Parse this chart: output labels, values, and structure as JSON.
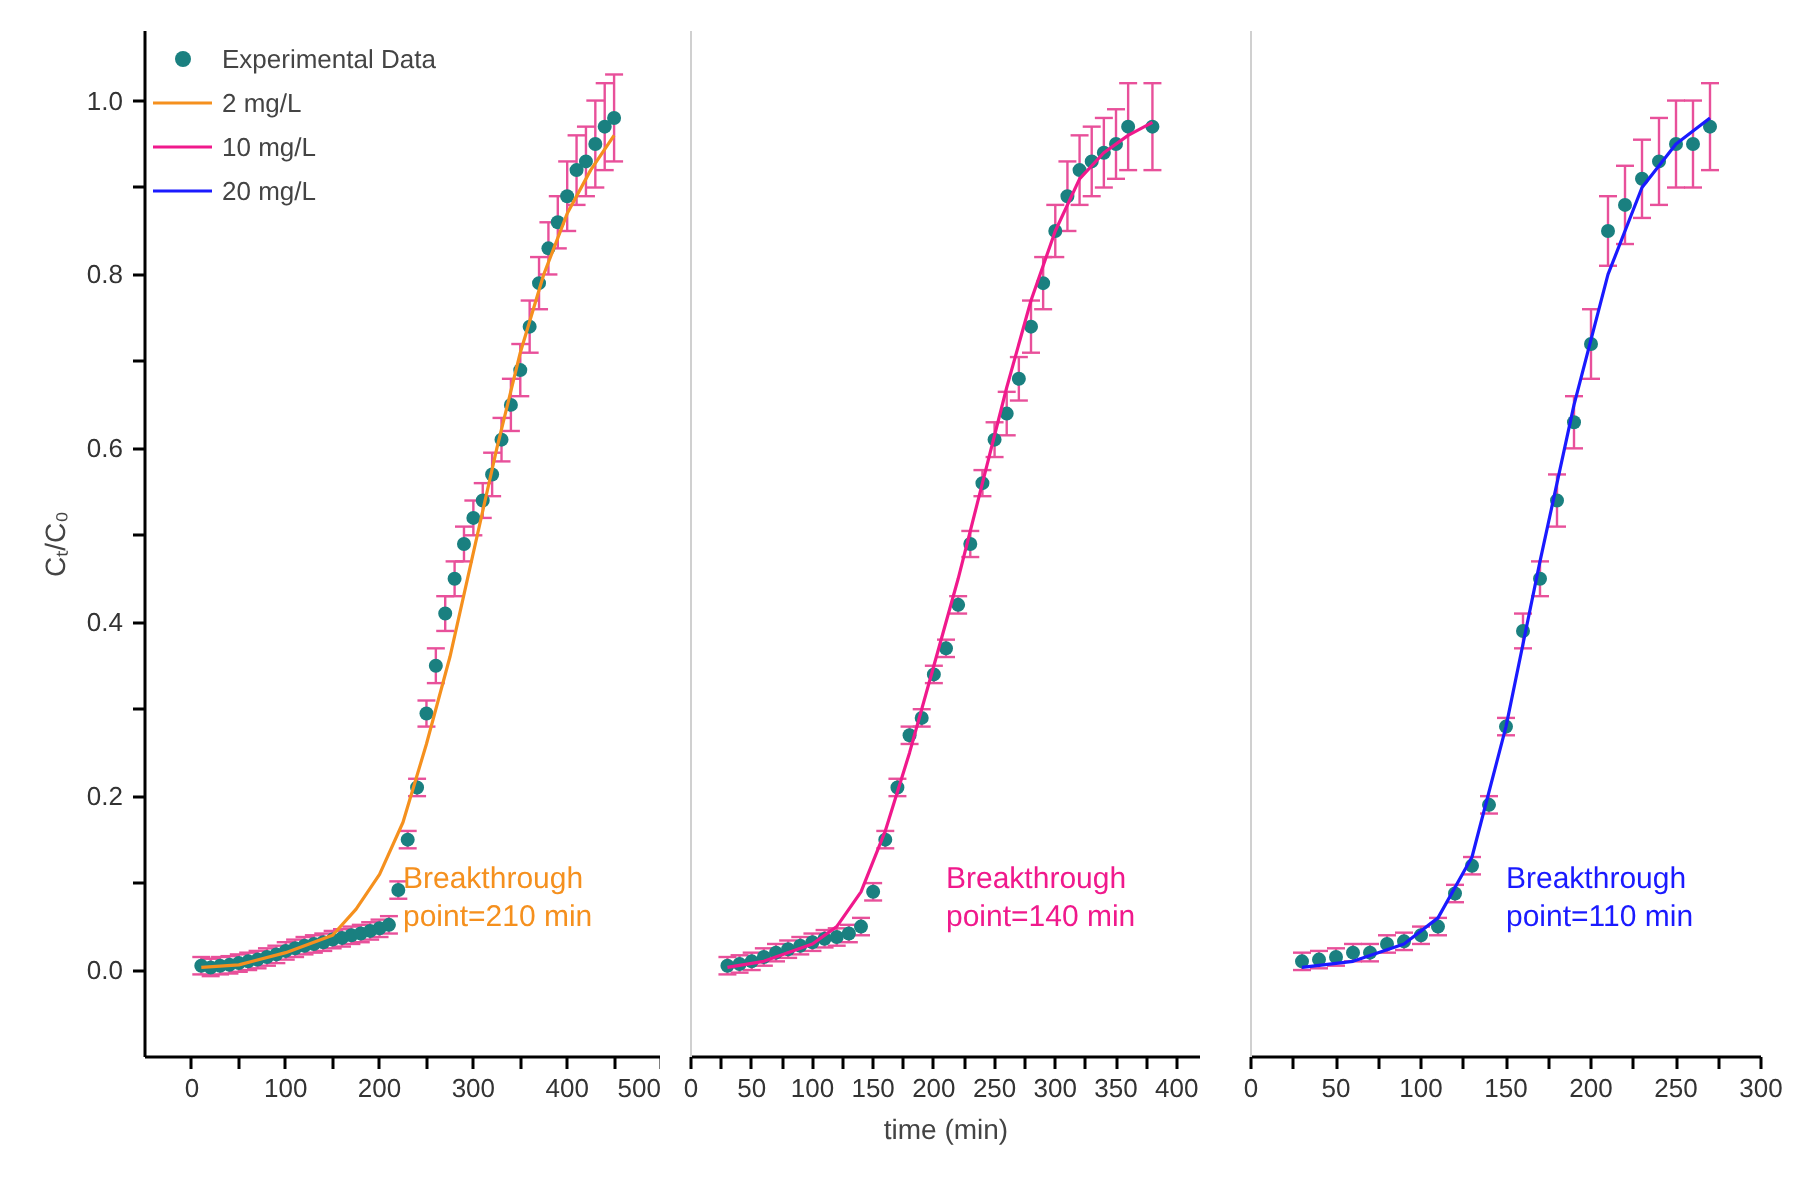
{
  "chart_data": [
    {
      "type": "scatter",
      "ylabel": "Cₜ/C₀",
      "xlim": [
        -50,
        500
      ],
      "ylim": [
        -0.1,
        1.08
      ],
      "grid": false,
      "legend": "top left",
      "xticks": [
        0,
        {
          "value": 50,
          "label": null
        },
        100,
        {
          "value": 150,
          "label": null
        },
        200,
        {
          "value": 250,
          "label": null
        },
        300,
        {
          "value": 350,
          "label": null
        },
        400,
        {
          "value": 450,
          "label": null
        },
        500
      ],
      "yticks": [
        {
          "value": 0,
          "label": "0.0"
        },
        {
          "value": 0.1,
          "label": null
        },
        {
          "value": 0.2,
          "label": "0.2"
        },
        {
          "value": 0.3,
          "label": null
        },
        {
          "value": 0.4,
          "label": "0.4"
        },
        {
          "value": 0.5,
          "label": null
        },
        {
          "value": 0.6,
          "label": "0.6"
        },
        {
          "value": 0.7,
          "label": null
        },
        {
          "value": 0.8,
          "label": "0.8"
        },
        {
          "value": 0.9,
          "label": null
        },
        {
          "value": 1.0,
          "label": "1.0"
        }
      ],
      "annotations": [
        "Breakthrough\npoint=210 min"
      ],
      "series": [
        {
          "name": "Experimental Data",
          "marker": "circle",
          "color": "#1a8080",
          "x": [
            10,
            20,
            30,
            40,
            50,
            60,
            70,
            80,
            90,
            100,
            110,
            120,
            130,
            140,
            150,
            160,
            170,
            180,
            190,
            200,
            210,
            220,
            230,
            240,
            250,
            260,
            270,
            280,
            290,
            300,
            310,
            320,
            330,
            340,
            350,
            360,
            370,
            380,
            390,
            400,
            410,
            420,
            430,
            440,
            450
          ],
          "values": [
            0.005,
            0.003,
            0.005,
            0.006,
            0.008,
            0.01,
            0.012,
            0.015,
            0.018,
            0.022,
            0.025,
            0.028,
            0.03,
            0.032,
            0.035,
            0.037,
            0.04,
            0.042,
            0.045,
            0.048,
            0.052,
            0.092,
            0.15,
            0.21,
            0.295,
            0.35,
            0.41,
            0.45,
            0.49,
            0.52,
            0.54,
            0.57,
            0.61,
            0.65,
            0.69,
            0.74,
            0.79,
            0.83,
            0.86,
            0.89,
            0.92,
            0.93,
            0.95,
            0.97,
            0.98
          ],
          "errors": [
            0.01,
            0.01,
            0.01,
            0.01,
            0.01,
            0.01,
            0.01,
            0.01,
            0.01,
            0.01,
            0.01,
            0.01,
            0.01,
            0.01,
            0.01,
            0.01,
            0.01,
            0.01,
            0.01,
            0.01,
            0.01,
            0.01,
            0.01,
            0.01,
            0.015,
            0.02,
            0.02,
            0.02,
            0.02,
            0.02,
            0.02,
            0.025,
            0.025,
            0.03,
            0.03,
            0.03,
            0.03,
            0.03,
            0.03,
            0.04,
            0.04,
            0.04,
            0.05,
            0.05,
            0.05
          ]
        },
        {
          "type": "line",
          "name": "2 mg/L",
          "color": "#f5901e",
          "x": [
            10,
            50,
            100,
            150,
            175,
            200,
            225,
            250,
            275,
            300,
            325,
            350,
            375,
            400,
            425,
            450
          ],
          "values": [
            0.003,
            0.006,
            0.02,
            0.04,
            0.07,
            0.11,
            0.17,
            0.26,
            0.36,
            0.48,
            0.6,
            0.71,
            0.8,
            0.87,
            0.92,
            0.96
          ]
        }
      ]
    },
    {
      "type": "scatter",
      "xlabel": "time (min)",
      "xlim": [
        0,
        420
      ],
      "ylim": [
        -0.1,
        1.08
      ],
      "grid": false,
      "tick_labels": "x",
      "xticks": [
        0,
        {
          "value": 25,
          "label": null
        },
        50,
        {
          "value": 75,
          "label": null
        },
        100,
        {
          "value": 125,
          "label": null
        },
        150,
        {
          "value": 175,
          "label": null
        },
        200,
        {
          "value": 225,
          "label": null
        },
        250,
        {
          "value": 275,
          "label": null
        },
        300,
        {
          "value": 325,
          "label": null
        },
        350,
        {
          "value": 375,
          "label": null
        },
        400
      ],
      "annotations": [
        "Breakthrough\npoint=140 min"
      ],
      "series": [
        {
          "marker": "circle",
          "color": "#1a8080",
          "x": [
            30,
            40,
            50,
            60,
            70,
            80,
            90,
            100,
            110,
            120,
            130,
            140,
            150,
            160,
            170,
            180,
            190,
            200,
            210,
            220,
            230,
            240,
            250,
            260,
            270,
            280,
            290,
            300,
            310,
            320,
            330,
            340,
            350,
            360,
            380
          ],
          "values": [
            0.005,
            0.007,
            0.01,
            0.015,
            0.02,
            0.024,
            0.028,
            0.032,
            0.036,
            0.038,
            0.042,
            0.05,
            0.09,
            0.15,
            0.21,
            0.27,
            0.29,
            0.34,
            0.37,
            0.42,
            0.49,
            0.56,
            0.61,
            0.64,
            0.68,
            0.74,
            0.79,
            0.85,
            0.89,
            0.92,
            0.93,
            0.94,
            0.95,
            0.97,
            0.97
          ],
          "errors": [
            0.01,
            0.01,
            0.01,
            0.01,
            0.01,
            0.01,
            0.01,
            0.01,
            0.01,
            0.01,
            0.01,
            0.01,
            0.01,
            0.01,
            0.01,
            0.01,
            0.01,
            0.01,
            0.01,
            0.01,
            0.015,
            0.015,
            0.02,
            0.025,
            0.025,
            0.03,
            0.03,
            0.03,
            0.04,
            0.04,
            0.04,
            0.04,
            0.04,
            0.05,
            0.05
          ]
        },
        {
          "type": "line",
          "name": "10 mg/L",
          "color": "#f0198c",
          "x": [
            30,
            60,
            100,
            120,
            140,
            160,
            180,
            200,
            220,
            240,
            260,
            280,
            300,
            320,
            340,
            360,
            380
          ],
          "values": [
            0.003,
            0.01,
            0.03,
            0.05,
            0.09,
            0.16,
            0.25,
            0.35,
            0.45,
            0.56,
            0.67,
            0.77,
            0.85,
            0.91,
            0.94,
            0.96,
            0.975
          ]
        }
      ]
    },
    {
      "type": "scatter",
      "xlim": [
        0,
        300
      ],
      "ylim": [
        -0.1,
        1.08
      ],
      "grid": false,
      "tick_labels": "x",
      "xticks": [
        0,
        {
          "value": 25,
          "label": null
        },
        50,
        {
          "value": 75,
          "label": null
        },
        100,
        {
          "value": 125,
          "label": null
        },
        150,
        {
          "value": 175,
          "label": null
        },
        200,
        {
          "value": 225,
          "label": null
        },
        250,
        {
          "value": 275,
          "label": null
        },
        300
      ],
      "annotations": [
        "Breakthrough\npoint=110 min"
      ],
      "series": [
        {
          "marker": "circle",
          "color": "#1a8080",
          "x": [
            30,
            40,
            50,
            60,
            70,
            80,
            90,
            100,
            110,
            120,
            130,
            140,
            150,
            160,
            170,
            180,
            190,
            200,
            210,
            220,
            230,
            240,
            250,
            260,
            270
          ],
          "values": [
            0.01,
            0.012,
            0.015,
            0.02,
            0.02,
            0.03,
            0.033,
            0.04,
            0.05,
            0.088,
            0.12,
            0.19,
            0.28,
            0.39,
            0.45,
            0.54,
            0.63,
            0.72,
            0.85,
            0.88,
            0.91,
            0.93,
            0.95,
            0.95,
            0.97
          ],
          "errors": [
            0.01,
            0.01,
            0.01,
            0.01,
            0.01,
            0.01,
            0.01,
            0.01,
            0.01,
            0.01,
            0.01,
            0.01,
            0.01,
            0.02,
            0.02,
            0.03,
            0.03,
            0.04,
            0.04,
            0.045,
            0.045,
            0.05,
            0.05,
            0.05,
            0.05
          ]
        },
        {
          "type": "line",
          "name": "20 mg/L",
          "color": "#1a1aff",
          "x": [
            30,
            60,
            90,
            110,
            130,
            150,
            170,
            190,
            210,
            230,
            250,
            270
          ],
          "values": [
            0.003,
            0.01,
            0.03,
            0.06,
            0.13,
            0.28,
            0.47,
            0.65,
            0.8,
            0.9,
            0.95,
            0.98
          ]
        }
      ]
    }
  ]
}
